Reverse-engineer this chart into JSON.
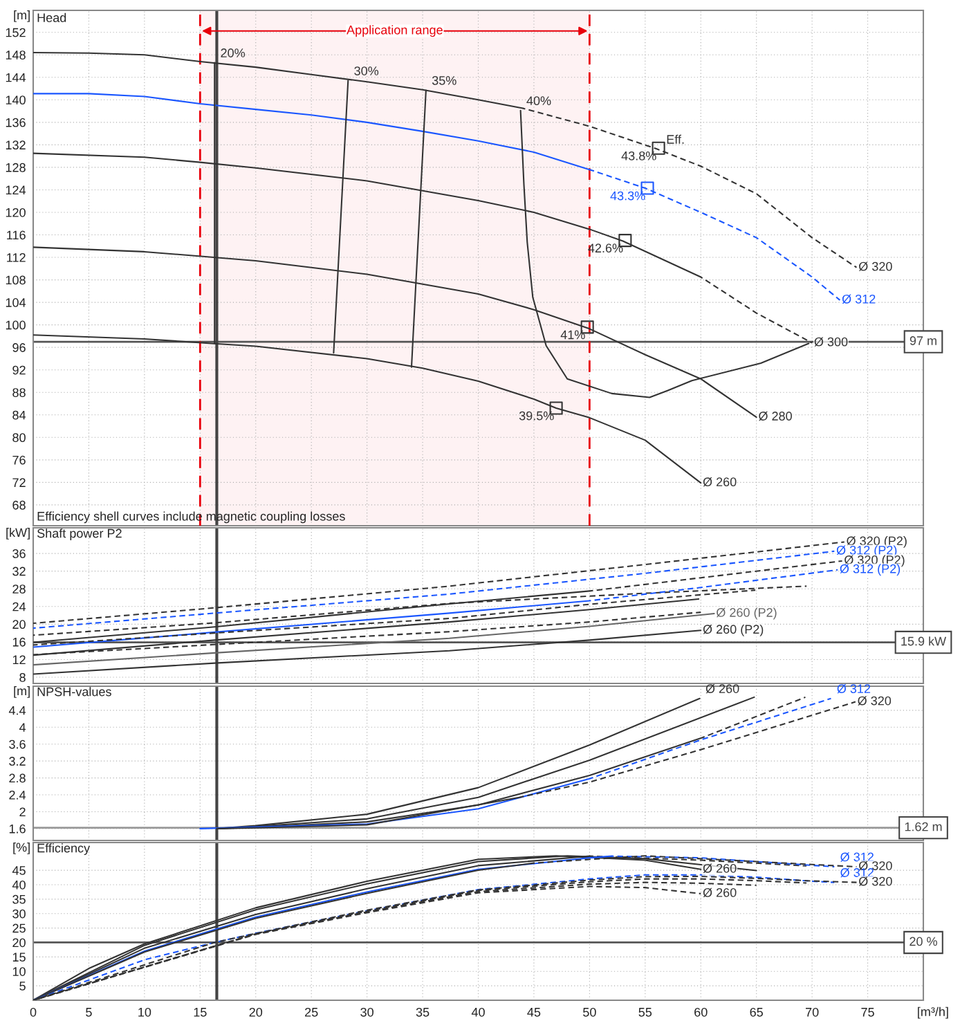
{
  "chart_data": [
    {
      "type": "line",
      "title": "Head",
      "ylabel": "[m]",
      "xlim": [
        0,
        80
      ],
      "xticks": [
        0,
        5,
        10,
        15,
        20,
        25,
        30,
        35,
        40,
        45,
        50,
        55,
        60,
        65,
        70,
        75
      ],
      "ylim": [
        64.3,
        155.9
      ],
      "yticks": [
        68,
        72,
        76,
        80,
        84,
        88,
        92,
        96,
        100,
        104,
        108,
        112,
        116,
        120,
        124,
        128,
        132,
        136,
        140,
        144,
        148,
        152
      ],
      "grid": true,
      "tick_labels": "y",
      "series": [
        {
          "color": "#333333",
          "line_style": "solid",
          "x": [
            0,
            5,
            10,
            15,
            20,
            25,
            30,
            35,
            40,
            44
          ],
          "values": [
            148.4,
            148.3,
            148,
            146.8,
            145.8,
            144.5,
            143.2,
            141.8,
            140,
            138.5
          ]
        },
        {
          "name": "Ø 320",
          "color": "#333333",
          "line_style": "dashed",
          "x": [
            44,
            50,
            56,
            60,
            65,
            70,
            74
          ],
          "values": [
            138.5,
            135.3,
            131.3,
            128.2,
            123.3,
            115.5,
            110.2
          ]
        },
        {
          "color": "#1a56ff",
          "line_style": "solid",
          "x": [
            0,
            5,
            10,
            15,
            20,
            25,
            30,
            35,
            40,
            45,
            50
          ],
          "values": [
            141.1,
            141.1,
            140.6,
            139.3,
            138.3,
            137.3,
            136,
            134.4,
            132.7,
            130.7,
            127.6
          ]
        },
        {
          "name": "Ø 312",
          "color": "#1a56ff",
          "line_style": "dashed",
          "x": [
            50,
            55,
            60,
            65,
            70,
            72.5
          ],
          "values": [
            127.6,
            124.3,
            120,
            115.5,
            108.5,
            104.4
          ]
        },
        {
          "color": "#333333",
          "line_style": "solid",
          "x": [
            0,
            10,
            15,
            20,
            30,
            40,
            45,
            50,
            53,
            60
          ],
          "values": [
            130.5,
            129.8,
            128.9,
            127.9,
            125.6,
            122.1,
            120,
            117,
            114.9,
            108.5
          ]
        },
        {
          "name": "Ø 300",
          "color": "#333333",
          "line_style": "dashed",
          "x": [
            60,
            65,
            70
          ],
          "values": [
            108.5,
            102.1,
            96.8
          ]
        },
        {
          "name": "Ø 280",
          "color": "#333333",
          "line_style": "solid",
          "x": [
            0,
            10,
            20,
            30,
            40,
            45,
            50,
            55,
            60,
            65
          ],
          "values": [
            113.8,
            113,
            111.4,
            109,
            105.5,
            102.7,
            99.3,
            94.7,
            90.4,
            83.6
          ]
        },
        {
          "name": "Ø 260",
          "color": "#333333",
          "line_style": "solid",
          "x": [
            0,
            10,
            16,
            20,
            30,
            35,
            40,
            45,
            47,
            50,
            55,
            60
          ],
          "values": [
            98.2,
            97.5,
            96.7,
            96.2,
            94,
            92.3,
            90,
            86.8,
            85.2,
            83.5,
            79.5,
            71.9
          ]
        },
        {
          "name": "20%",
          "color": "#333333",
          "line_style": "solid",
          "x": [
            16.3,
            16.3
          ],
          "values": [
            96.7,
            146.6
          ]
        },
        {
          "name": "30%",
          "color": "#333333",
          "line_style": "solid",
          "x": [
            27,
            28.3
          ],
          "values": [
            95,
            143.4
          ]
        },
        {
          "name": "35%",
          "color": "#333333",
          "line_style": "solid",
          "x": [
            34,
            35.3
          ],
          "values": [
            92.5,
            141.7
          ]
        },
        {
          "name": "40%",
          "color": "#333333",
          "line_style": "solid",
          "x": [
            69.7,
            65.4,
            59.2,
            57,
            55.4,
            52,
            48,
            46.1,
            44.9,
            44.4,
            44.1,
            43.8
          ],
          "values": [
            96.7,
            93.2,
            90.1,
            88.3,
            87.1,
            87.8,
            90.4,
            96.3,
            104.9,
            114.7,
            125,
            138.1
          ]
        },
        {
          "type": "scatter",
          "marker": "square",
          "x": [
            56.2,
            55.2,
            53.2,
            49.8,
            47
          ],
          "values": [
            131.4,
            124.3,
            115,
            99.6,
            85.2
          ],
          "colors": [
            "#333333",
            "#1a56ff",
            "#333333",
            "#333333",
            "#333333"
          ]
        }
      ],
      "bands": [
        {
          "axis": "x",
          "from": 15,
          "to": 50,
          "label": "Application range",
          "color": "#e8000b"
        }
      ],
      "ref_lines": [
        {
          "axis": "y",
          "value": 97,
          "label": "97 m",
          "color": "#555555"
        },
        {
          "axis": "x",
          "value": 16.5,
          "color": "#444444"
        }
      ],
      "annotations": [
        {
          "text": "Eff.",
          "x": 56.2,
          "y": 131.4
        },
        {
          "text": "43.8%",
          "x": 56.2,
          "y": 131.4
        },
        {
          "text": "43.3%",
          "x": 55.2,
          "y": 124.3
        },
        {
          "text": "42.6%",
          "x": 53.2,
          "y": 115
        },
        {
          "text": "41%",
          "x": 49.8,
          "y": 99.6
        },
        {
          "text": "39.5%",
          "x": 47,
          "y": 85.2
        },
        "Efficiency shell curves include magnetic coupling losses"
      ]
    },
    {
      "type": "line",
      "title": "Shaft power P2",
      "ylabel": "[kW]",
      "xlim": [
        0,
        80
      ],
      "xticks": [
        0,
        5,
        10,
        15,
        20,
        25,
        30,
        35,
        40,
        45,
        50,
        55,
        60,
        65,
        70,
        75
      ],
      "ylim": [
        6.6,
        41.8
      ],
      "yticks": [
        8,
        12,
        16,
        20,
        24,
        28,
        32,
        36
      ],
      "grid": true,
      "tick_labels": "y",
      "series": [
        {
          "name": "Ø 320 (P2)",
          "color": "#333333",
          "line_style": "dashed",
          "x": [
            0,
            16.3,
            37.4,
            55,
            72.9
          ],
          "values": [
            20.2,
            23.7,
            28.6,
            33.5,
            38.6
          ]
        },
        {
          "name": "Ø 312 (P2)",
          "color": "#1a56ff",
          "line_style": "dashed",
          "x": [
            0,
            16.3,
            37.4,
            55,
            72
          ],
          "values": [
            19.1,
            22.5,
            26.8,
            31.5,
            36.5
          ]
        },
        {
          "color": "#333333",
          "line_style": "dashed",
          "x": [
            0,
            16.3,
            37.4,
            55,
            69.5
          ],
          "values": [
            17.5,
            20.3,
            24.7,
            27,
            28.6
          ]
        },
        {
          "color": "#333333",
          "line_style": "solid",
          "x": [
            0,
            16.3,
            37.4,
            50
          ],
          "values": [
            15.9,
            19.4,
            24.6,
            27.5
          ]
        },
        {
          "name": "Ø 320 (P2)",
          "color": "#333333",
          "line_style": "dashed",
          "x": [
            50,
            60,
            72.7
          ],
          "values": [
            27.5,
            30.5,
            34.3
          ]
        },
        {
          "color": "#1a56ff",
          "line_style": "solid",
          "x": [
            0,
            16.3,
            37.4,
            50
          ],
          "values": [
            14.8,
            18.2,
            22.5,
            25.3
          ]
        },
        {
          "name": "Ø 312 (P2)",
          "color": "#1a56ff",
          "line_style": "dashed",
          "x": [
            50,
            60,
            72.3
          ],
          "values": [
            25.3,
            28.3,
            32.3
          ]
        },
        {
          "color": "#333333",
          "line_style": "dashed",
          "x": [
            0,
            16.3,
            37.4,
            50,
            64.9
          ],
          "values": [
            15.3,
            18,
            21.3,
            24.5,
            27.7
          ]
        },
        {
          "color": "#333333",
          "line_style": "solid",
          "x": [
            0,
            16.3,
            37.4,
            50,
            59.8
          ],
          "values": [
            13,
            16.4,
            20.5,
            23.3,
            25.7
          ]
        },
        {
          "color": "#333333",
          "line_style": "dashed",
          "x": [
            0,
            16.3,
            37.4,
            50,
            60
          ],
          "values": [
            13.1,
            15.4,
            18.3,
            20.5,
            22.7
          ]
        },
        {
          "name": "Ø 260 (P2)",
          "color": "#666666",
          "line_style": "solid",
          "x": [
            0,
            16.3,
            37.4,
            50,
            61.2
          ],
          "values": [
            10.8,
            13.5,
            16.8,
            19.5,
            22.4
          ]
        },
        {
          "name": "Ø 260 (P2)",
          "color": "#333333",
          "line_style": "solid",
          "x": [
            0,
            16.3,
            37.4,
            50,
            60
          ],
          "values": [
            8.7,
            11.2,
            14,
            16.4,
            18.6
          ]
        }
      ],
      "ref_lines": [
        {
          "axis": "y",
          "value": 15.9,
          "label": "15.9 kW",
          "color": "#555555"
        },
        {
          "axis": "x",
          "value": 16.5,
          "color": "#444444"
        }
      ]
    },
    {
      "type": "line",
      "title": "NPSH-values",
      "ylabel": "[m]",
      "xlim": [
        0,
        80
      ],
      "xticks": [
        0,
        5,
        10,
        15,
        20,
        25,
        30,
        35,
        40,
        45,
        50,
        55,
        60,
        65,
        70,
        75
      ],
      "ylim": [
        1.32,
        4.97
      ],
      "yticks": [
        1.6,
        2,
        2.4,
        2.8,
        3.2,
        3.6,
        4,
        4.4
      ],
      "grid": true,
      "tick_labels": "y",
      "series": [
        {
          "name": "Ø 260",
          "color": "#333333",
          "line_style": "solid",
          "x": [
            16.5,
            20,
            30,
            40,
            50,
            59.9
          ],
          "values": [
            1.6,
            1.67,
            1.94,
            2.57,
            3.58,
            4.68
          ]
        },
        {
          "color": "#333333",
          "line_style": "solid",
          "x": [
            16.5,
            20,
            30,
            40,
            50,
            64.8
          ],
          "values": [
            1.6,
            1.65,
            1.83,
            2.34,
            3.22,
            4.71
          ]
        },
        {
          "color": "#333333",
          "line_style": "solid",
          "x": [
            16.5,
            20,
            30,
            40,
            50,
            60.2
          ],
          "values": [
            1.6,
            1.63,
            1.76,
            2.16,
            2.86,
            3.76
          ]
        },
        {
          "color": "#333333",
          "line_style": "dashed",
          "x": [
            60.2,
            69.4
          ],
          "values": [
            3.76,
            4.71
          ]
        },
        {
          "color": "#1a56ff",
          "line_style": "solid",
          "x": [
            15,
            30,
            40,
            50
          ],
          "values": [
            1.6,
            1.71,
            2.07,
            2.78
          ]
        },
        {
          "name": "Ø 312",
          "color": "#1a56ff",
          "line_style": "dashed",
          "x": [
            50,
            60,
            71.7
          ],
          "values": [
            2.78,
            3.7,
            4.68
          ]
        },
        {
          "color": "#333333",
          "line_style": "solid",
          "x": [
            16.5,
            20,
            30,
            43.7
          ],
          "values": [
            1.6,
            1.62,
            1.69,
            2.34
          ]
        },
        {
          "name": "Ø 320",
          "color": "#333333",
          "line_style": "dashed",
          "x": [
            43.7,
            50,
            60,
            73.9
          ],
          "values": [
            2.34,
            2.7,
            3.47,
            4.6
          ]
        }
      ],
      "ref_lines": [
        {
          "axis": "y",
          "value": 1.62,
          "label": "1.62 m",
          "color": "#999999"
        },
        {
          "axis": "x",
          "value": 16.5,
          "color": "#444444"
        }
      ]
    },
    {
      "type": "line",
      "title": "Efficiency",
      "ylabel": "[%]",
      "xlabel": "[m³/h]",
      "xlim": [
        0,
        80
      ],
      "xticks": [
        0,
        5,
        10,
        15,
        20,
        25,
        30,
        35,
        40,
        45,
        50,
        55,
        60,
        65,
        70,
        75
      ],
      "ylim": [
        0,
        54.6
      ],
      "yticks": [
        5,
        10,
        15,
        20,
        25,
        30,
        35,
        40,
        45
      ],
      "grid": true,
      "series": [
        {
          "name": "Ø 260",
          "color": "#333333",
          "line_style": "solid",
          "x": [
            0,
            5,
            10,
            20,
            30,
            40,
            47,
            55,
            60
          ],
          "values": [
            0,
            11,
            19.5,
            32,
            41.2,
            48.8,
            50,
            48.5,
            45.3
          ]
        },
        {
          "color": "#333333",
          "line_style": "solid",
          "x": [
            0,
            10,
            20,
            30,
            40,
            48,
            55,
            65
          ],
          "values": [
            0,
            19,
            31.3,
            40.3,
            48,
            50,
            49,
            44.9
          ]
        },
        {
          "color": "#333333",
          "line_style": "solid",
          "x": [
            0,
            10,
            20,
            30,
            40,
            50
          ],
          "values": [
            0,
            18,
            29.7,
            38.6,
            46.6,
            49.9
          ]
        },
        {
          "color": "#333333",
          "line_style": "dashed",
          "x": [
            50,
            60,
            69.5
          ],
          "values": [
            49.9,
            48.5,
            46.5
          ]
        },
        {
          "color": "#1a56ff",
          "line_style": "solid",
          "x": [
            0,
            10,
            20,
            30,
            40,
            50,
            52
          ],
          "values": [
            0,
            17,
            28.8,
            37.5,
            45.3,
            49.3,
            49.9
          ]
        },
        {
          "name": "Ø 312",
          "color": "#1a56ff",
          "line_style": "dashed",
          "x": [
            52,
            60,
            65,
            72
          ],
          "values": [
            49.9,
            49.3,
            48,
            46.2
          ]
        },
        {
          "color": "#333333",
          "line_style": "solid",
          "x": [
            0,
            10,
            20,
            30,
            40,
            45
          ],
          "values": [
            0,
            16.7,
            28.4,
            37,
            45,
            47.5
          ]
        },
        {
          "name": "Ø 320",
          "color": "#333333",
          "line_style": "dashed",
          "x": [
            45,
            55,
            65,
            74
          ],
          "values": [
            47.5,
            50,
            48,
            46.2
          ]
        },
        {
          "name": "Ø 312",
          "color": "#1a56ff",
          "line_style": "dashed",
          "x": [
            0,
            10,
            16.3,
            20,
            30,
            40,
            50,
            55,
            60,
            65,
            70,
            72
          ],
          "values": [
            0,
            14,
            20,
            23.2,
            31,
            38.3,
            42,
            43.4,
            43.4,
            42.6,
            41.2,
            40.8
          ]
        },
        {
          "name": "Ø 320",
          "color": "#333333",
          "line_style": "dashed",
          "x": [
            0,
            16.3,
            20,
            30,
            40,
            50,
            55,
            60,
            65,
            70,
            74
          ],
          "values": [
            0,
            20,
            23.1,
            31.2,
            38.2,
            41.6,
            42.8,
            42.9,
            42.2,
            41.3,
            40.8
          ]
        },
        {
          "color": "#333333",
          "line_style": "dashed",
          "x": [
            0,
            20,
            30,
            40,
            50,
            55,
            60,
            65,
            69.5
          ],
          "values": [
            0,
            23,
            30.8,
            38,
            41,
            42,
            42,
            41.4,
            40.6
          ]
        },
        {
          "color": "#333333",
          "line_style": "dashed",
          "x": [
            0,
            20,
            30,
            40,
            50,
            55,
            60,
            65
          ],
          "values": [
            0,
            23,
            30.6,
            37.6,
            40.2,
            40.8,
            40.5,
            39.8
          ]
        },
        {
          "name": "Ø 260",
          "color": "#333333",
          "line_style": "dashed",
          "x": [
            0,
            20,
            30,
            40,
            50,
            55,
            60
          ],
          "values": [
            0,
            22.8,
            30.3,
            37.2,
            39.4,
            39,
            36.9
          ]
        }
      ],
      "ref_lines": [
        {
          "axis": "y",
          "value": 20,
          "label": "20 %",
          "color": "#555555"
        },
        {
          "axis": "x",
          "value": 16.5,
          "color": "#444444"
        }
      ]
    }
  ]
}
